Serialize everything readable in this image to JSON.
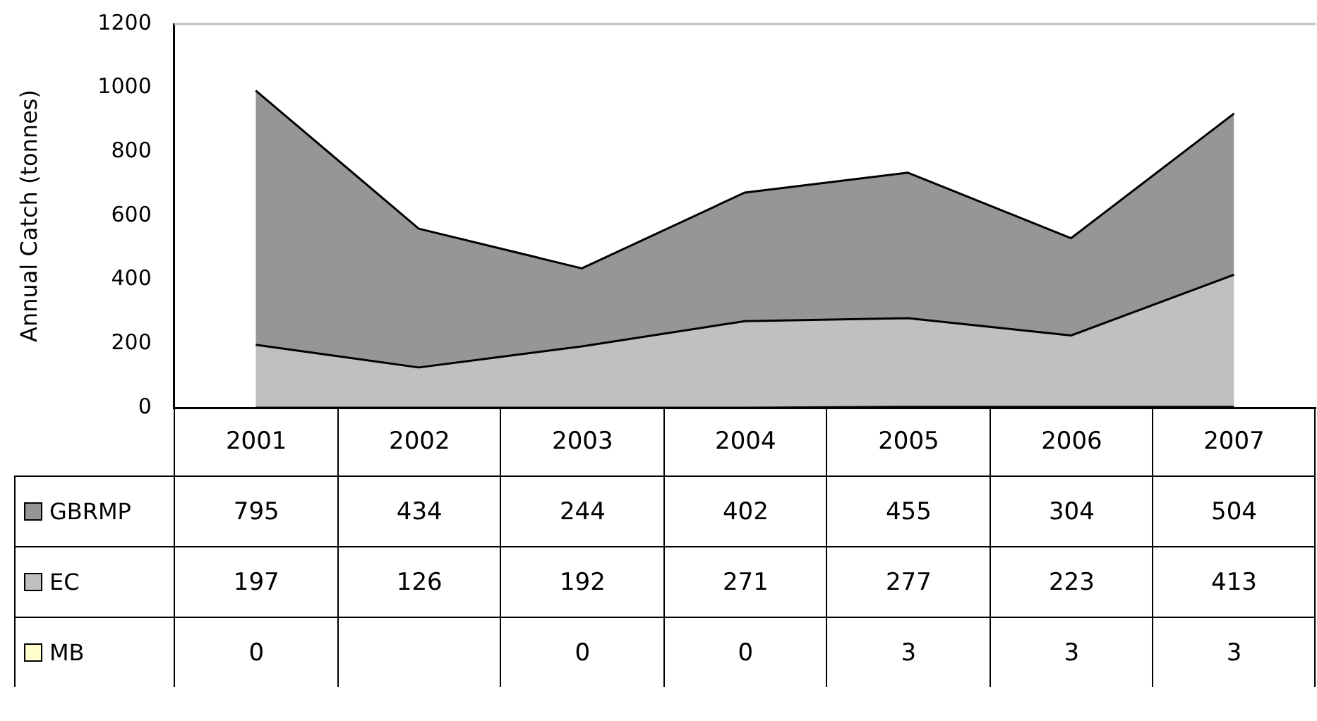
{
  "chart_data": {
    "type": "area",
    "ylabel": "Annual Catch (tonnes)",
    "categories": [
      "2001",
      "2002",
      "2003",
      "2004",
      "2005",
      "2006",
      "2007"
    ],
    "stacked": true,
    "ylim": [
      0,
      1200
    ],
    "yticks": [
      0,
      200,
      400,
      600,
      800,
      1000,
      1200
    ],
    "grid": false,
    "legend": "bottom",
    "data_labels": true,
    "series": [
      {
        "name": "MB",
        "color": "#ffffcc",
        "values": [
          0,
          null,
          0,
          0,
          3,
          3,
          3
        ],
        "value_labels": [
          "0",
          null,
          "0",
          "0",
          "3",
          "3",
          "3"
        ]
      },
      {
        "name": "EC",
        "color": "#c0c0c0",
        "values": [
          197,
          126,
          192,
          271,
          277,
          223,
          413
        ]
      },
      {
        "name": "GBRMP",
        "color": "#969696",
        "values": [
          795,
          434,
          244,
          402,
          455,
          304,
          504
        ]
      }
    ]
  }
}
